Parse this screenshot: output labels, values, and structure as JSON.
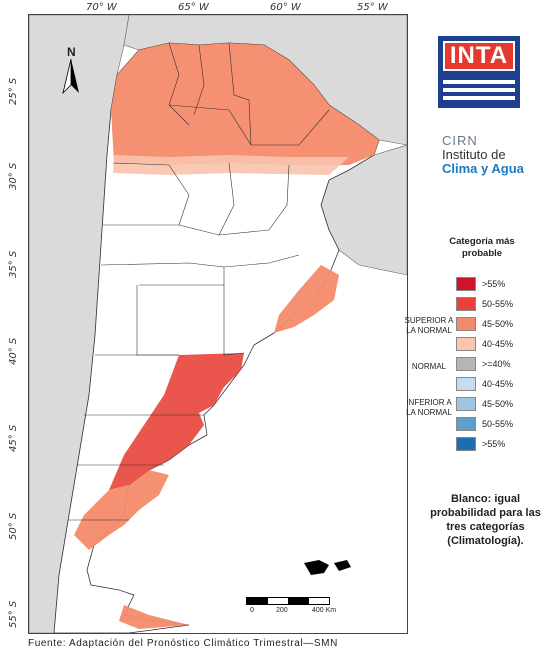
{
  "map": {
    "lon_labels": [
      "70° W",
      "65° W",
      "60° W",
      "55° W"
    ],
    "lat_labels": [
      "25° S",
      "30° S",
      "35° S",
      "40° S",
      "45° S",
      "50° S",
      "55° S"
    ],
    "north_label": "N",
    "scale_labels": [
      "0",
      "200",
      "400 Km"
    ]
  },
  "logos": {
    "inta": "INTA",
    "cirn_top": "CIRN",
    "cirn_line1": "Instituto de",
    "cirn_line2": "Clima y Agua"
  },
  "legend": {
    "title": "Categoría más probable",
    "groups": [
      {
        "label": "SUPERIOR A LA NORMAL"
      },
      {
        "label": "NORMAL"
      },
      {
        "label": "INFERIOR A LA NORMAL"
      }
    ],
    "entries": [
      {
        "label": ">55%",
        "color": "#d0122c"
      },
      {
        "label": "50-55%",
        "color": "#e8433a"
      },
      {
        "label": "45-50%",
        "color": "#f48a6c"
      },
      {
        "label": "40-45%",
        "color": "#f9c3ad"
      },
      {
        "label": ">=40%",
        "color": "#b5b5b5"
      },
      {
        "label": "40-45%",
        "color": "#c5dcee"
      },
      {
        "label": "45-50%",
        "color": "#9ec6e2"
      },
      {
        "label": "50-55%",
        "color": "#5f9fd0"
      },
      {
        "label": ">55%",
        "color": "#1e6db2"
      }
    ]
  },
  "note": "Blanco: igual probabilidad para las tres categorías (Climatología).",
  "source": "Fuente: Adaptación del Pronóstico Climático Trimestral—SMN"
}
